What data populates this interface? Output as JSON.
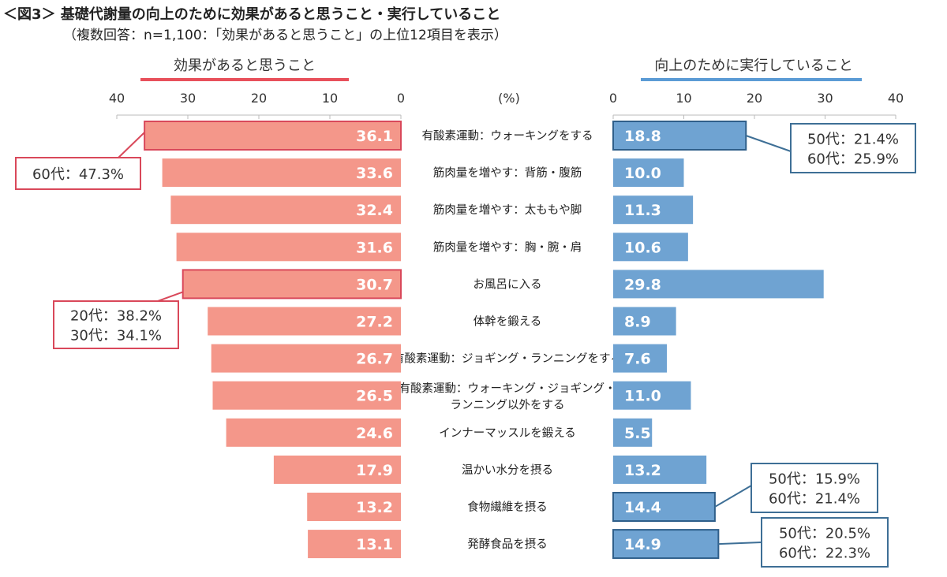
{
  "title": "＜図3＞ 基礎代謝量の向上のために効果があると思うこと・実行していること",
  "subtitle": "（複数回答：n=1,100：「効果があると思うこと」の上位12項目を表示）",
  "colors": {
    "left_bar": "#f4978a",
    "left_highlight": "#d9485a",
    "right_bar": "#6fa3d2",
    "right_highlight": "#2f5f8a",
    "left_callout": "#d9485a",
    "right_callout": "#3e6f96"
  },
  "chart_data": {
    "type": "bar",
    "orientation": "horizontal-butterfly",
    "unit_label": "(%)",
    "categories": [
      "有酸素運動：ウォーキングをする",
      "筋肉量を増やす：背筋・腹筋",
      "筋肉量を増やす：太ももや脚",
      "筋肉量を増やす：胸・腕・肩",
      "お風呂に入る",
      "体幹を鍛える",
      "有酸素運動：ジョギング・ランニングをする",
      "有酸素運動：ウォーキング・ジョギング・|ランニング以外をする",
      "インナーマッスルを鍛える",
      "温かい水分を摂る",
      "食物繊維を摂る",
      "発酵食品を摂る"
    ],
    "series": [
      {
        "name": "効果があると思うこと",
        "values": [
          36.1,
          33.6,
          32.4,
          31.6,
          30.7,
          27.2,
          26.7,
          26.5,
          24.6,
          17.9,
          13.2,
          13.1
        ],
        "xlim": [
          0,
          40
        ],
        "ticks": [
          "40",
          "30",
          "20",
          "10",
          "0"
        ],
        "highlighted": [
          0,
          4
        ]
      },
      {
        "name": "向上のために実行していること",
        "values": [
          18.8,
          10.0,
          11.3,
          10.6,
          29.8,
          8.9,
          7.6,
          11.0,
          5.5,
          13.2,
          14.4,
          14.9
        ],
        "xlim": [
          0,
          40
        ],
        "ticks": [
          "0",
          "10",
          "20",
          "30",
          "40"
        ],
        "highlighted": [
          0,
          10,
          11
        ]
      }
    ],
    "annotations": [
      {
        "series": 0,
        "row": 0,
        "lines": [
          "60代：47.3%"
        ]
      },
      {
        "series": 0,
        "row": 4,
        "lines": [
          "20代：38.2%",
          "30代：34.1%"
        ]
      },
      {
        "series": 1,
        "row": 0,
        "lines": [
          "50代：21.4%",
          "60代：25.9%"
        ]
      },
      {
        "series": 1,
        "row": 10,
        "lines": [
          "50代：15.9%",
          "60代：21.4%"
        ]
      },
      {
        "series": 1,
        "row": 11,
        "lines": [
          "50代：20.5%",
          "60代：22.3%"
        ]
      }
    ]
  }
}
